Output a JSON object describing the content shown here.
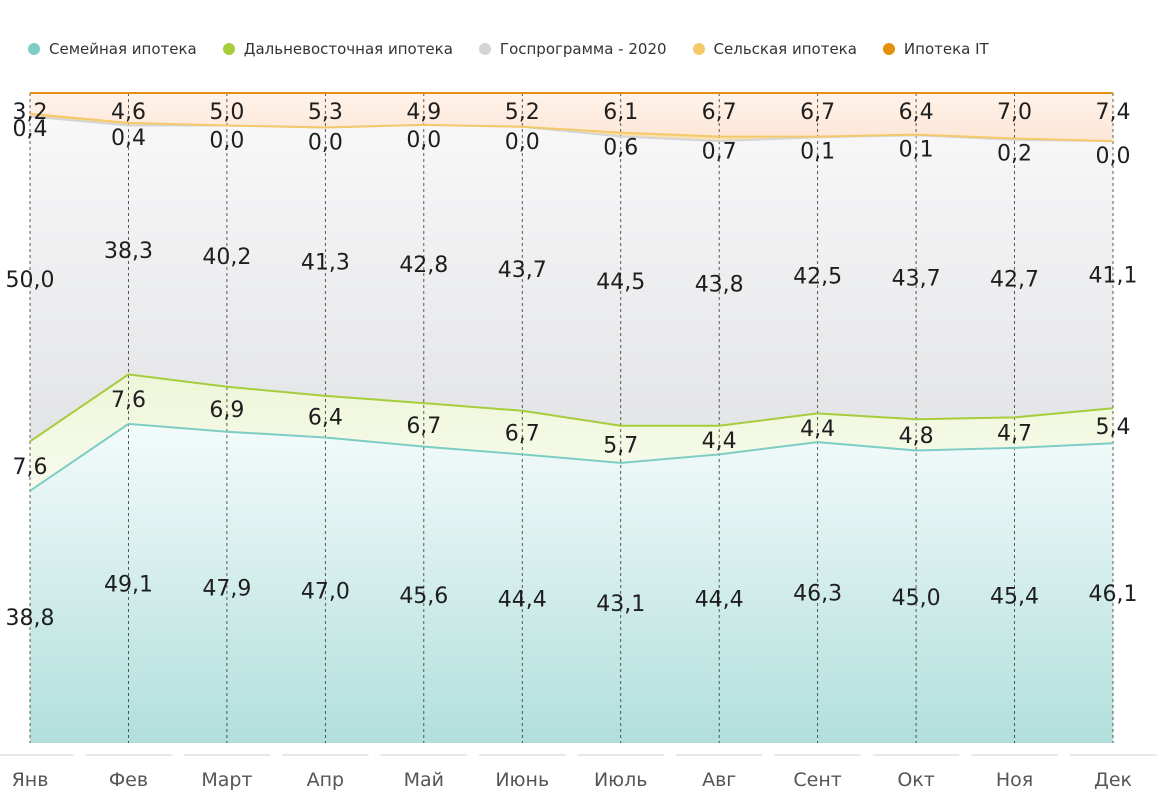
{
  "chart_data": {
    "type": "area",
    "stacked": true,
    "normalized_percent": true,
    "categories": [
      "Янв",
      "Фев",
      "Март",
      "Апр",
      "Май",
      "Июнь",
      "Июль",
      "Авг",
      "Сент",
      "Окт",
      "Ноя",
      "Дек"
    ],
    "ylim": [
      0,
      100
    ],
    "grid": "vertical-dashed",
    "legend": "top-left",
    "series": [
      {
        "name": "Семейная ипотека",
        "color": "#7ecdc4",
        "values": [
          38.8,
          49.1,
          47.9,
          47.0,
          45.6,
          44.4,
          43.1,
          44.4,
          46.3,
          45.0,
          45.4,
          46.1
        ],
        "labels": [
          "38,8",
          "49,1",
          "47,9",
          "47,0",
          "45,6",
          "44,4",
          "43,1",
          "44,4",
          "46,3",
          "45,0",
          "45,4",
          "46,1"
        ]
      },
      {
        "name": "Дальневосточная ипотека",
        "color": "#a5cd3c",
        "values": [
          7.6,
          7.6,
          6.9,
          6.4,
          6.7,
          6.7,
          5.7,
          4.4,
          4.4,
          4.8,
          4.7,
          5.4
        ],
        "labels": [
          "7,6",
          "7,6",
          "6,9",
          "6,4",
          "6,7",
          "6,7",
          "5,7",
          "4,4",
          "4,4",
          "4,8",
          "4,7",
          "5,4"
        ]
      },
      {
        "name": "Госпрограмма - 2020",
        "color": "#d3d4d6",
        "values": [
          50.0,
          38.3,
          40.2,
          41.3,
          42.8,
          43.7,
          44.5,
          43.8,
          42.5,
          43.7,
          42.7,
          41.1
        ],
        "labels": [
          "50,0",
          "38,3",
          "40,2",
          "41,3",
          "42,8",
          "43,7",
          "44,5",
          "43,8",
          "42,5",
          "43,7",
          "42,7",
          "41,1"
        ]
      },
      {
        "name": "Сельская ипотека",
        "color": "#f5c96a",
        "values": [
          0.4,
          0.4,
          0.0,
          0.0,
          0.0,
          0.0,
          0.6,
          0.7,
          0.1,
          0.1,
          0.2,
          0.0
        ],
        "labels": [
          "0,4",
          "0,4",
          "0,0",
          "0,0",
          "0,0",
          "0,0",
          "0,6",
          "0,7",
          "0,1",
          "0,1",
          "0,2",
          "0,0"
        ]
      },
      {
        "name": "Ипотека IT",
        "color": "#e4900f",
        "values": [
          3.2,
          4.6,
          5.0,
          5.3,
          4.9,
          5.2,
          6.1,
          6.7,
          6.7,
          6.4,
          7.0,
          7.4
        ],
        "labels": [
          "3,2",
          "4,6",
          "5,0",
          "5,3",
          "4,9",
          "5,2",
          "6,1",
          "6,7",
          "6,7",
          "6,4",
          "7,0",
          "7,4"
        ]
      }
    ]
  }
}
